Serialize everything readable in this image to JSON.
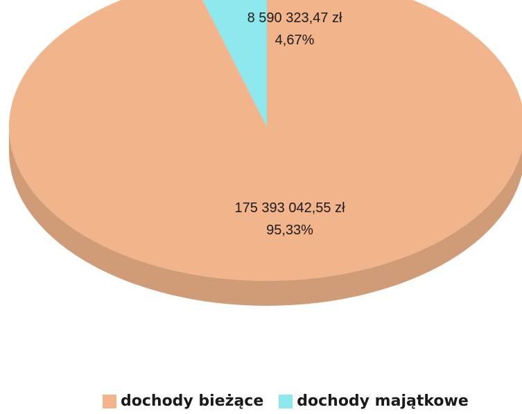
{
  "chart_data": {
    "type": "pie",
    "title": "",
    "series": [
      {
        "name": "dochody bieżące",
        "value": 175393042.55,
        "percent": 95.33,
        "value_label": "175 393 042,55 zł",
        "percent_label": "95,33%",
        "color": "#f2b48a"
      },
      {
        "name": "dochody majątkowe",
        "value": 8590323.47,
        "percent": 4.67,
        "value_label": "8 590 323,47 zł",
        "percent_label": "4,67%",
        "color": "#8de8ee"
      }
    ],
    "legend_position": "bottom",
    "style": "3d-pie"
  }
}
